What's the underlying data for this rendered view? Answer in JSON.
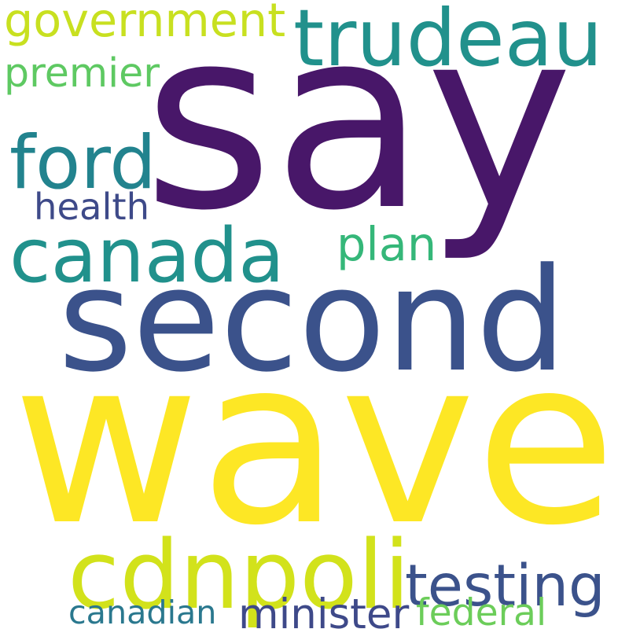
{
  "words": {
    "say": {
      "text": "say",
      "color": "#481769"
    },
    "wave": {
      "text": "wave",
      "color": "#fde725"
    },
    "second": {
      "text": "second",
      "color": "#3b528b"
    },
    "trudeau": {
      "text": "trudeau",
      "color": "#21918c"
    },
    "canada": {
      "text": "canada",
      "color": "#21918c"
    },
    "cdnpoli": {
      "text": "cdnpoli",
      "color": "#d2e21b"
    },
    "government": {
      "text": "government",
      "color": "#c8e020"
    },
    "ford": {
      "text": "ford",
      "color": "#22838e"
    },
    "testing": {
      "text": "testing",
      "color": "#3b528b"
    },
    "premier": {
      "text": "premier",
      "color": "#5ec962"
    },
    "plan": {
      "text": "plan",
      "color": "#35b779"
    },
    "health": {
      "text": "health",
      "color": "#3e4a89"
    },
    "canadian": {
      "text": "canadian",
      "color": "#2a788e"
    },
    "minister": {
      "text": "minister",
      "color": "#3e4989"
    },
    "federal": {
      "text": "federal",
      "color": "#6ccd5a"
    }
  }
}
